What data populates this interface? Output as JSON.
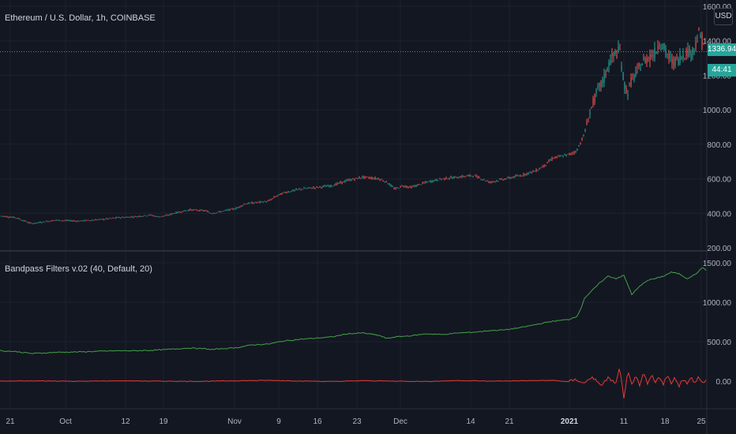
{
  "header": {
    "symbol_title": "Ethereum / U.S. Dollar, 1h, COINBASE",
    "currency": "USD",
    "last_price": "1336.94",
    "countdown": "44:41"
  },
  "indicator": {
    "title": "Bandpass Filters v.02 (40, Default, 20)"
  },
  "colors": {
    "background": "#131722",
    "grid": "#1e222d",
    "axis_text": "#b2b5be",
    "up": "#26a69a",
    "down": "#ef5350",
    "green_line": "#43a047",
    "red_line": "#e53935",
    "price_line": "#26a69a"
  },
  "chart_data": [
    {
      "type": "line",
      "name": "price",
      "y_ticks": [
        "200.00",
        "400.00",
        "600.00",
        "800.00",
        "1000.00",
        "1200.00",
        "1400.00",
        "1600.00"
      ],
      "ylim": [
        200,
        1600
      ],
      "x_ticks": [
        "21",
        "Oct",
        "12",
        "19",
        "Nov",
        "9",
        "16",
        "23",
        "Dec",
        "14",
        "21",
        "2021",
        "11",
        "18",
        "25"
      ],
      "x": [
        0,
        10,
        20,
        40,
        70,
        100,
        130,
        150,
        170,
        190,
        200,
        210,
        220,
        240,
        260,
        268,
        280,
        300,
        310,
        320,
        340,
        350,
        360,
        380,
        400,
        420,
        440,
        460,
        480,
        490,
        500,
        510,
        520,
        540,
        560,
        580,
        600,
        620,
        640,
        660,
        680,
        690,
        700,
        710,
        720,
        730,
        735,
        740,
        745,
        750,
        755,
        760,
        765,
        770,
        775,
        780,
        785,
        790,
        795,
        800,
        805,
        810,
        815,
        820,
        825,
        830,
        835,
        840,
        845,
        850,
        855,
        860,
        865,
        870,
        875,
        880,
        885,
        890,
        895
      ],
      "values": [
        385,
        380,
        375,
        340,
        360,
        355,
        365,
        375,
        380,
        390,
        380,
        385,
        400,
        420,
        415,
        400,
        410,
        430,
        455,
        460,
        470,
        500,
        520,
        540,
        550,
        560,
        590,
        610,
        600,
        580,
        540,
        560,
        550,
        580,
        600,
        610,
        620,
        580,
        600,
        620,
        650,
        680,
        720,
        730,
        740,
        760,
        810,
        860,
        950,
        1030,
        1090,
        1140,
        1180,
        1260,
        1300,
        1330,
        1340,
        1150,
        1100,
        1180,
        1200,
        1250,
        1280,
        1300,
        1320,
        1330,
        1400,
        1360,
        1320,
        1280,
        1280,
        1300,
        1320,
        1340,
        1330,
        1370,
        1440,
        1400,
        1336.94
      ],
      "note_last": "1336.94"
    },
    {
      "type": "line",
      "name": "bandpass",
      "y_ticks": [
        "0.00",
        "500.00",
        "1000.00",
        "1500.00"
      ],
      "ylim": [
        -300,
        1600
      ],
      "series": [
        {
          "x": [
            0,
            20,
            40,
            70,
            100,
            130,
            150,
            170,
            190,
            210,
            240,
            260,
            268,
            280,
            300,
            320,
            340,
            360,
            380,
            400,
            420,
            440,
            460,
            480,
            490,
            500,
            520,
            540,
            560,
            580,
            600,
            620,
            640,
            660,
            680,
            700,
            720,
            730,
            735,
            740,
            750,
            760,
            770,
            780,
            790,
            800,
            810,
            820,
            830,
            840,
            850,
            860,
            870,
            880,
            890,
            895
          ],
          "values": [
            385,
            375,
            350,
            365,
            370,
            380,
            385,
            385,
            390,
            400,
            420,
            410,
            400,
            410,
            425,
            460,
            470,
            510,
            530,
            545,
            560,
            600,
            610,
            580,
            540,
            560,
            575,
            600,
            590,
            610,
            620,
            640,
            650,
            680,
            720,
            760,
            780,
            820,
            900,
            1050,
            1150,
            1250,
            1330,
            1300,
            1340,
            1100,
            1200,
            1280,
            1300,
            1330,
            1380,
            1360,
            1300,
            1350,
            1440,
            1400
          ]
        },
        {
          "x": [
            0,
            50,
            100,
            150,
            200,
            250,
            300,
            340,
            380,
            420,
            460,
            500,
            540,
            580,
            620,
            660,
            700,
            720,
            730,
            740,
            750,
            760,
            770,
            780,
            785,
            790,
            795,
            800,
            805,
            810,
            815,
            820,
            825,
            830,
            835,
            840,
            845,
            850,
            855,
            860,
            865,
            870,
            875,
            880,
            885,
            890,
            895
          ],
          "values": [
            0,
            3,
            -2,
            4,
            0,
            -3,
            5,
            10,
            2,
            -5,
            6,
            0,
            -4,
            8,
            0,
            5,
            10,
            -8,
            20,
            -30,
            60,
            -60,
            40,
            -30,
            180,
            -240,
            120,
            -50,
            90,
            -80,
            100,
            -40,
            70,
            -20,
            60,
            -30,
            80,
            -40,
            50,
            -60,
            30,
            -20,
            40,
            -10,
            60,
            -30,
            10
          ]
        }
      ]
    }
  ]
}
